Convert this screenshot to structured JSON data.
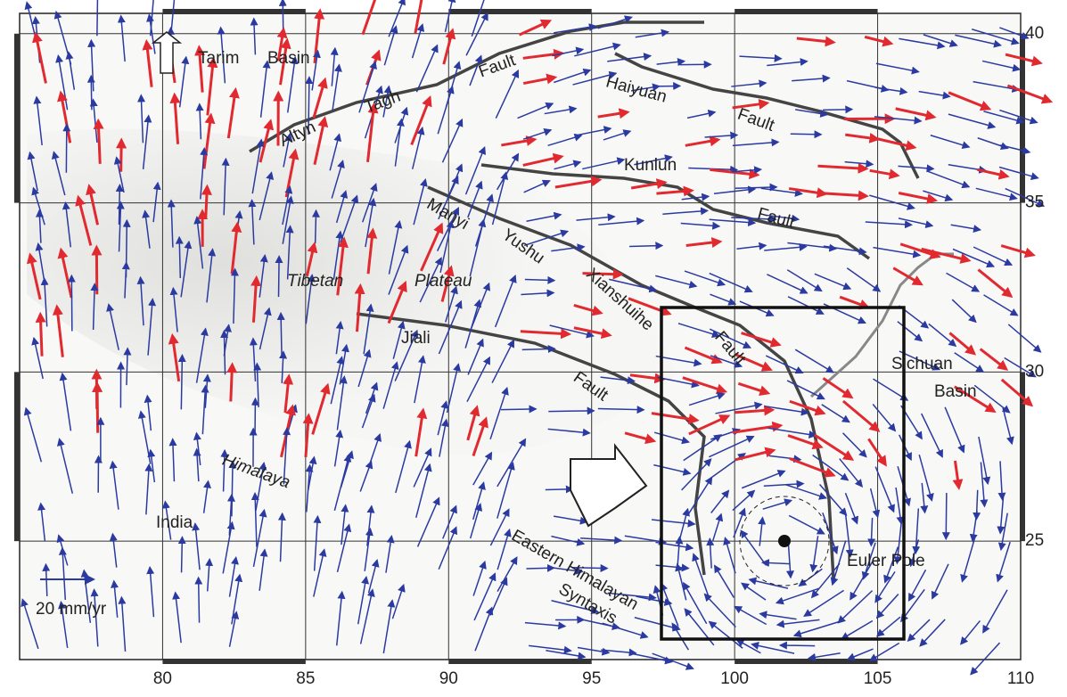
{
  "map": {
    "xlim": [
      75,
      110
    ],
    "ylim": [
      21.5,
      40.6
    ],
    "xticks": [
      80,
      85,
      90,
      95,
      100,
      105,
      110
    ],
    "yticks": [
      25,
      30,
      35,
      40
    ],
    "grid": true,
    "labels": [
      "Tarim",
      "Basin",
      "Altyn",
      "Tagh",
      "Fault",
      "Haiyuan",
      "Fault",
      "Kunlun",
      "Fault",
      "Manyi",
      "Yushu",
      "Xianshuihe",
      "Fault",
      "Jiali",
      "Fault",
      "Tibetan",
      "Plateau",
      "Himalaya",
      "India",
      "Eastern Himalayan",
      "Syntaxis",
      "Sichuan",
      "Basin",
      "Euler Pole"
    ],
    "scale_label": "20 mm/yr"
  }
}
